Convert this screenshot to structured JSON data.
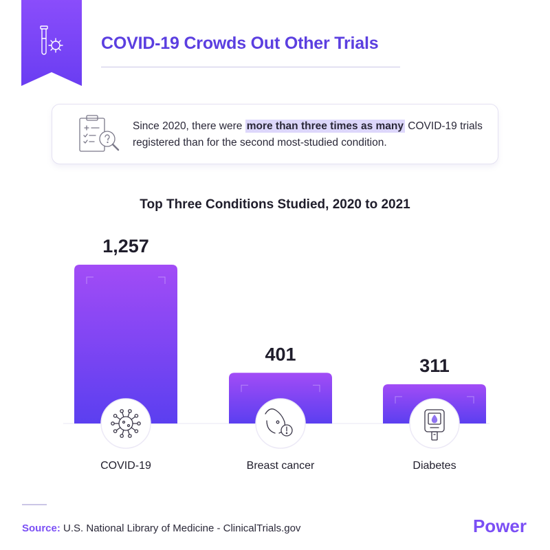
{
  "header": {
    "title": "COVID-19 Crowds Out Other Trials",
    "ribbon_icon": "test-tube-virus-icon"
  },
  "callout": {
    "icon": "clipboard-magnifier-icon",
    "text_before": "Since 2020, there were ",
    "text_highlight": "more than three times as many",
    "text_after": " COVID-19 trials registered than for the second most-studied condition."
  },
  "chart_data": {
    "type": "bar",
    "title": "Top Three Conditions Studied, 2020 to 2021",
    "categories": [
      "COVID-19",
      "Breast cancer",
      "Diabetes"
    ],
    "values": [
      1257,
      401,
      311
    ],
    "value_labels": [
      "1,257",
      "401",
      "311"
    ],
    "icons": [
      "virus-icon",
      "breast-cancer-icon",
      "glucose-meter-icon"
    ],
    "bar_gradient": [
      "#a24cf6",
      "#5b3ff0"
    ],
    "xlabel": "",
    "ylabel": "",
    "grid": false,
    "legend": "none"
  },
  "footer": {
    "source_label": "Source:",
    "source_text": "U.S. National Library of Medicine - ClinicalTrials.gov",
    "brand": "Power"
  },
  "colors": {
    "accent": "#7b4ff5",
    "title": "#5b3fe0",
    "highlight": "#ddd7fb"
  }
}
